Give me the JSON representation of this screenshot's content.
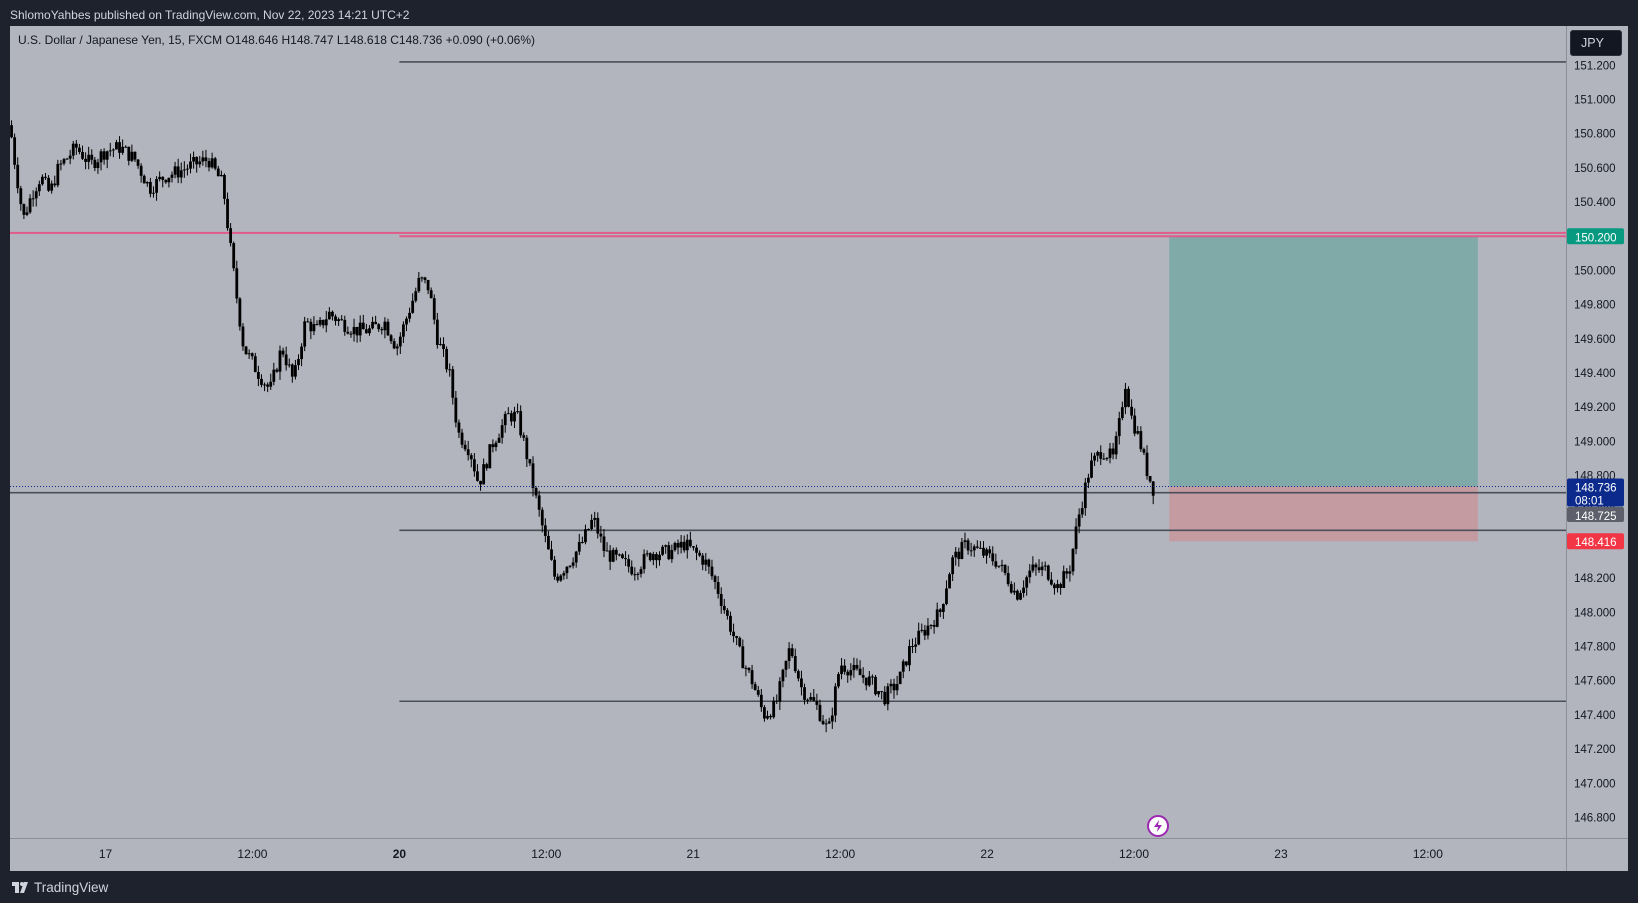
{
  "header": {
    "published_text": "ShlomoYahbes published on TradingView.com, Nov 22, 2023 14:21 UTC+2"
  },
  "legend": {
    "text": "U.S. Dollar / Japanese Yen, 15, FXCM  O148.646  H148.747  L148.618  C148.736  +0.090 (+0.06%)"
  },
  "currency_button": {
    "label": "JPY"
  },
  "footer": {
    "brand": "TradingView"
  },
  "colors": {
    "plot_bg": "#b2b5be",
    "candle": "#000000",
    "target_zone": "#80aaa8",
    "stop_zone": "#c49ba0",
    "pink_level": "#e05b8a",
    "level_line": "#4a4e58",
    "price_badge": "#0b2a8c",
    "target_badge": "#089981",
    "stop_badge": "#f23645",
    "grey_badge": "#5d606b"
  },
  "chart_data": {
    "type": "candlestick",
    "symbol": "U.S. Dollar / Japanese Yen",
    "timeframe": "15",
    "exchange": "FXCM",
    "ohlc_last": {
      "open": 148.646,
      "high": 148.747,
      "low": 148.618,
      "close": 148.736,
      "change": "+0.090",
      "change_pct": "+0.06%"
    },
    "ylim": [
      146.68,
      151.43
    ],
    "y_ticks": [
      "151.200",
      "151.000",
      "150.800",
      "150.600",
      "150.400",
      "150.200",
      "150.000",
      "149.800",
      "149.600",
      "149.400",
      "149.200",
      "149.000",
      "148.800",
      "148.600",
      "148.400",
      "148.200",
      "148.000",
      "147.800",
      "147.600",
      "147.400",
      "147.200",
      "147.000",
      "146.800"
    ],
    "x_ticks": [
      {
        "label": "17",
        "bold": false,
        "t": 0.0
      },
      {
        "label": "12:00",
        "bold": false,
        "t": 0.5
      },
      {
        "label": "20",
        "bold": true,
        "t": 1.0
      },
      {
        "label": "12:00",
        "bold": false,
        "t": 1.5
      },
      {
        "label": "21",
        "bold": false,
        "t": 2.0
      },
      {
        "label": "12:00",
        "bold": false,
        "t": 2.5
      },
      {
        "label": "22",
        "bold": false,
        "t": 3.0
      },
      {
        "label": "12:00",
        "bold": false,
        "t": 3.5
      },
      {
        "label": "23",
        "bold": false,
        "t": 4.0
      },
      {
        "label": "12:00",
        "bold": false,
        "t": 4.5
      }
    ],
    "x_range": [
      -0.325,
      4.97
    ],
    "price_path": [
      [
        -0.325,
        150.85
      ],
      [
        -0.31,
        150.65
      ],
      [
        -0.28,
        150.3
      ],
      [
        -0.25,
        150.45
      ],
      [
        -0.22,
        150.55
      ],
      [
        -0.19,
        150.45
      ],
      [
        -0.16,
        150.6
      ],
      [
        -0.1,
        150.72
      ],
      [
        -0.05,
        150.62
      ],
      [
        0.0,
        150.7
      ],
      [
        0.05,
        150.72
      ],
      [
        0.1,
        150.65
      ],
      [
        0.15,
        150.48
      ],
      [
        0.2,
        150.55
      ],
      [
        0.25,
        150.58
      ],
      [
        0.3,
        150.62
      ],
      [
        0.35,
        150.65
      ],
      [
        0.4,
        150.5
      ],
      [
        0.42,
        150.2
      ],
      [
        0.45,
        149.8
      ],
      [
        0.47,
        149.55
      ],
      [
        0.52,
        149.4
      ],
      [
        0.56,
        149.3
      ],
      [
        0.6,
        149.55
      ],
      [
        0.64,
        149.35
      ],
      [
        0.68,
        149.7
      ],
      [
        0.72,
        149.65
      ],
      [
        0.76,
        149.75
      ],
      [
        0.8,
        149.7
      ],
      [
        0.85,
        149.65
      ],
      [
        0.9,
        149.65
      ],
      [
        0.95,
        149.7
      ],
      [
        0.99,
        149.55
      ],
      [
        1.03,
        149.75
      ],
      [
        1.07,
        149.95
      ],
      [
        1.1,
        149.9
      ],
      [
        1.13,
        149.6
      ],
      [
        1.17,
        149.4
      ],
      [
        1.2,
        149.05
      ],
      [
        1.24,
        148.95
      ],
      [
        1.27,
        148.75
      ],
      [
        1.32,
        149.0
      ],
      [
        1.37,
        149.15
      ],
      [
        1.4,
        149.15
      ],
      [
        1.43,
        148.95
      ],
      [
        1.46,
        148.7
      ],
      [
        1.5,
        148.4
      ],
      [
        1.53,
        148.2
      ],
      [
        1.58,
        148.3
      ],
      [
        1.62,
        148.4
      ],
      [
        1.66,
        148.55
      ],
      [
        1.7,
        148.35
      ],
      [
        1.75,
        148.3
      ],
      [
        1.8,
        148.25
      ],
      [
        1.86,
        148.35
      ],
      [
        1.92,
        148.35
      ],
      [
        1.97,
        148.4
      ],
      [
        2.04,
        148.3
      ],
      [
        2.08,
        148.15
      ],
      [
        2.12,
        147.95
      ],
      [
        2.16,
        147.75
      ],
      [
        2.2,
        147.6
      ],
      [
        2.24,
        147.4
      ],
      [
        2.28,
        147.45
      ],
      [
        2.33,
        147.8
      ],
      [
        2.37,
        147.55
      ],
      [
        2.42,
        147.45
      ],
      [
        2.46,
        147.3
      ],
      [
        2.5,
        147.7
      ],
      [
        2.55,
        147.65
      ],
      [
        2.6,
        147.6
      ],
      [
        2.65,
        147.5
      ],
      [
        2.7,
        147.6
      ],
      [
        2.74,
        147.8
      ],
      [
        2.79,
        147.9
      ],
      [
        2.84,
        148.0
      ],
      [
        2.88,
        148.3
      ],
      [
        2.93,
        148.4
      ],
      [
        2.98,
        148.35
      ],
      [
        3.03,
        148.3
      ],
      [
        3.07,
        148.2
      ],
      [
        3.1,
        148.1
      ],
      [
        3.15,
        148.25
      ],
      [
        3.2,
        148.25
      ],
      [
        3.24,
        148.15
      ],
      [
        3.28,
        148.25
      ],
      [
        3.31,
        148.55
      ],
      [
        3.35,
        148.85
      ],
      [
        3.39,
        148.95
      ],
      [
        3.43,
        148.9
      ],
      [
        3.45,
        149.1
      ],
      [
        3.47,
        149.35
      ],
      [
        3.49,
        149.15
      ],
      [
        3.52,
        149.0
      ],
      [
        3.54,
        148.85
      ],
      [
        3.57,
        148.7
      ]
    ],
    "trade_box": {
      "x_start": 3.62,
      "x_end": 4.67,
      "target": 150.2,
      "entry": 148.736,
      "stop": 148.416,
      "target_label": "150.200",
      "stop_label": "148.416"
    },
    "levels": [
      {
        "price": 151.22,
        "x_start": 1.0,
        "color": "level"
      },
      {
        "price": 150.22,
        "x_start": -0.325,
        "color": "pink"
      },
      {
        "price": 150.2,
        "x_start": 1.0,
        "color": "pink"
      },
      {
        "price": 148.7,
        "x_start": -0.325,
        "color": "level"
      },
      {
        "price": 148.48,
        "x_start": 1.0,
        "color": "level"
      },
      {
        "price": 147.48,
        "x_start": 1.0,
        "color": "level"
      }
    ],
    "last_price": {
      "label": "148.736",
      "countdown": "08:01"
    },
    "grey_price_label": "148.725"
  }
}
